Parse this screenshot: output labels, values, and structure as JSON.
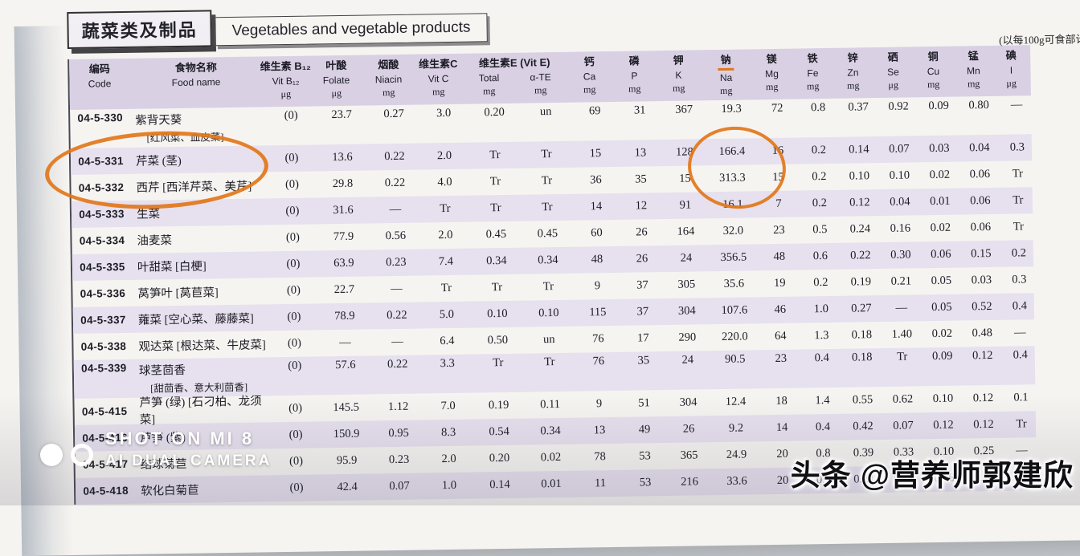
{
  "colors": {
    "row_stripe": "#e7e0ee",
    "header_band": "#d9d0e4",
    "annotation_orange": "#e2761a",
    "page_bg": "#f6f4f1",
    "photo_bg": "#c4c8cc"
  },
  "header": {
    "title_cn": "蔬菜类及制品",
    "title_en": "Vegetables and vegetable products",
    "note": "(以每100g可食部计)"
  },
  "table": {
    "header": {
      "before": [
        {
          "key": "code",
          "cn": "编码",
          "en": "Code",
          "unit": ""
        },
        {
          "key": "food-name",
          "cn": "食物名称",
          "en": "Food name",
          "unit": ""
        },
        {
          "key": "vit-b12",
          "cn": "维生素 B₁₂",
          "en": "Vit B₁₂",
          "unit": "μg"
        },
        {
          "key": "folate",
          "cn": "叶酸",
          "en": "Folate",
          "unit": "μg"
        },
        {
          "key": "niacin",
          "cn": "烟酸",
          "en": "Niacin",
          "unit": "mg"
        },
        {
          "key": "vit-c",
          "cn": "维生素C",
          "en": "Vit C",
          "unit": "mg"
        }
      ],
      "group": {
        "label": "维生素E (Vit E)",
        "subs": [
          {
            "key": "vit-e-total",
            "en": "Total",
            "unit": "mg"
          },
          {
            "key": "alpha-te",
            "en": "α-TE",
            "unit": "mg"
          }
        ]
      },
      "after": [
        {
          "key": "ca",
          "cn": "钙",
          "en": "Ca",
          "unit": "mg"
        },
        {
          "key": "p",
          "cn": "磷",
          "en": "P",
          "unit": "mg"
        },
        {
          "key": "k",
          "cn": "钾",
          "en": "K",
          "unit": "mg"
        },
        {
          "key": "na",
          "cn": "钠",
          "en": "Na",
          "unit": "mg",
          "underline": true
        },
        {
          "key": "mg",
          "cn": "镁",
          "en": "Mg",
          "unit": "mg"
        },
        {
          "key": "fe",
          "cn": "铁",
          "en": "Fe",
          "unit": "mg"
        },
        {
          "key": "zn",
          "cn": "锌",
          "en": "Zn",
          "unit": "mg"
        },
        {
          "key": "se",
          "cn": "硒",
          "en": "Se",
          "unit": "μg"
        },
        {
          "key": "cu",
          "cn": "铜",
          "en": "Cu",
          "unit": "mg"
        },
        {
          "key": "mn",
          "cn": "锰",
          "en": "Mn",
          "unit": "mg"
        },
        {
          "key": "i",
          "cn": "碘",
          "en": "I",
          "unit": "μg"
        }
      ]
    },
    "rows": [
      {
        "code": "04-5-330",
        "name": "紫背天葵",
        "name2": "[红风菜、血皮菜]",
        "values": [
          "(0)",
          "23.7",
          "0.27",
          "3.0",
          "0.20",
          "un",
          "69",
          "31",
          "367",
          "19.3",
          "72",
          "0.8",
          "0.37",
          "0.92",
          "0.09",
          "0.80",
          "—"
        ]
      },
      {
        "code": "04-5-331",
        "name": "芹菜 (茎)",
        "values": [
          "(0)",
          "13.6",
          "0.22",
          "2.0",
          "Tr",
          "Tr",
          "15",
          "13",
          "128",
          "166.4",
          "16",
          "0.2",
          "0.14",
          "0.07",
          "0.03",
          "0.04",
          "0.3"
        ]
      },
      {
        "code": "04-5-332",
        "name": "西芹 [西洋芹菜、美芹]",
        "values": [
          "(0)",
          "29.8",
          "0.22",
          "4.0",
          "Tr",
          "Tr",
          "36",
          "35",
          "15",
          "313.3",
          "15",
          "0.2",
          "0.10",
          "0.10",
          "0.02",
          "0.06",
          "Tr"
        ]
      },
      {
        "code": "04-5-333",
        "name": "生菜",
        "values": [
          "(0)",
          "31.6",
          "—",
          "Tr",
          "Tr",
          "Tr",
          "14",
          "12",
          "91",
          "16.1",
          "7",
          "0.2",
          "0.12",
          "0.04",
          "0.01",
          "0.06",
          "Tr"
        ]
      },
      {
        "code": "04-5-334",
        "name": "油麦菜",
        "values": [
          "(0)",
          "77.9",
          "0.56",
          "2.0",
          "0.45",
          "0.45",
          "60",
          "26",
          "164",
          "32.0",
          "23",
          "0.5",
          "0.24",
          "0.16",
          "0.02",
          "0.06",
          "Tr"
        ]
      },
      {
        "code": "04-5-335",
        "name": "叶甜菜 [白梗]",
        "values": [
          "(0)",
          "63.9",
          "0.23",
          "7.4",
          "0.34",
          "0.34",
          "48",
          "26",
          "24",
          "356.5",
          "48",
          "0.6",
          "0.22",
          "0.30",
          "0.06",
          "0.15",
          "0.2"
        ]
      },
      {
        "code": "04-5-336",
        "name": "莴笋叶 [莴苣菜]",
        "values": [
          "(0)",
          "22.7",
          "—",
          "Tr",
          "Tr",
          "Tr",
          "9",
          "37",
          "305",
          "35.6",
          "19",
          "0.2",
          "0.19",
          "0.21",
          "0.05",
          "0.03",
          "0.3"
        ]
      },
      {
        "code": "04-5-337",
        "name": "蕹菜 [空心菜、藤藤菜]",
        "values": [
          "(0)",
          "78.9",
          "0.22",
          "5.0",
          "0.10",
          "0.10",
          "115",
          "37",
          "304",
          "107.6",
          "46",
          "1.0",
          "0.27",
          "—",
          "0.05",
          "0.52",
          "0.4"
        ]
      },
      {
        "code": "04-5-338",
        "name": "观达菜 [根达菜、牛皮菜]",
        "values": [
          "(0)",
          "—",
          "—",
          "6.4",
          "0.50",
          "un",
          "76",
          "17",
          "290",
          "220.0",
          "64",
          "1.3",
          "0.18",
          "1.40",
          "0.02",
          "0.48",
          "—"
        ]
      },
      {
        "code": "04-5-339",
        "name": "球茎茴香",
        "name2": "[甜茴香、意大利茴香]",
        "values": [
          "(0)",
          "57.6",
          "0.22",
          "3.3",
          "Tr",
          "Tr",
          "76",
          "35",
          "24",
          "90.5",
          "23",
          "0.4",
          "0.18",
          "Tr",
          "0.09",
          "0.12",
          "0.4"
        ]
      },
      {
        "code": "04-5-415",
        "name": "芦笋 (绿) [石刁柏、龙须菜]",
        "values": [
          "(0)",
          "145.5",
          "1.12",
          "7.0",
          "0.19",
          "0.11",
          "9",
          "51",
          "304",
          "12.4",
          "18",
          "1.4",
          "0.55",
          "0.62",
          "0.10",
          "0.12",
          "0.1"
        ]
      },
      {
        "code": "04-5-416",
        "name": "芦笋 (紫)",
        "values": [
          "(0)",
          "150.9",
          "0.95",
          "8.3",
          "0.54",
          "0.34",
          "13",
          "49",
          "26",
          "9.2",
          "14",
          "0.4",
          "0.42",
          "0.07",
          "0.12",
          "0.12",
          "Tr"
        ]
      },
      {
        "code": "04-5-417",
        "name": "结球菊苣",
        "values": [
          "(0)",
          "95.9",
          "0.23",
          "2.0",
          "0.20",
          "0.02",
          "78",
          "53",
          "365",
          "24.9",
          "20",
          "0.8",
          "0.39",
          "0.33",
          "0.10",
          "0.25",
          "—"
        ]
      },
      {
        "code": "04-5-418",
        "name": "软化白菊苣",
        "values": [
          "(0)",
          "42.4",
          "0.07",
          "1.0",
          "0.14",
          "0.01",
          "11",
          "53",
          "216",
          "33.6",
          "20",
          "0.2",
          "0.24",
          "0.21",
          "0.06",
          "0.14",
          "Tr"
        ]
      }
    ]
  },
  "watermarks": {
    "camera_line1": "SHOT ON MI 8",
    "camera_line2": "AI DUAL CAMERA",
    "credit": "头条 @营养师郭建欣"
  }
}
